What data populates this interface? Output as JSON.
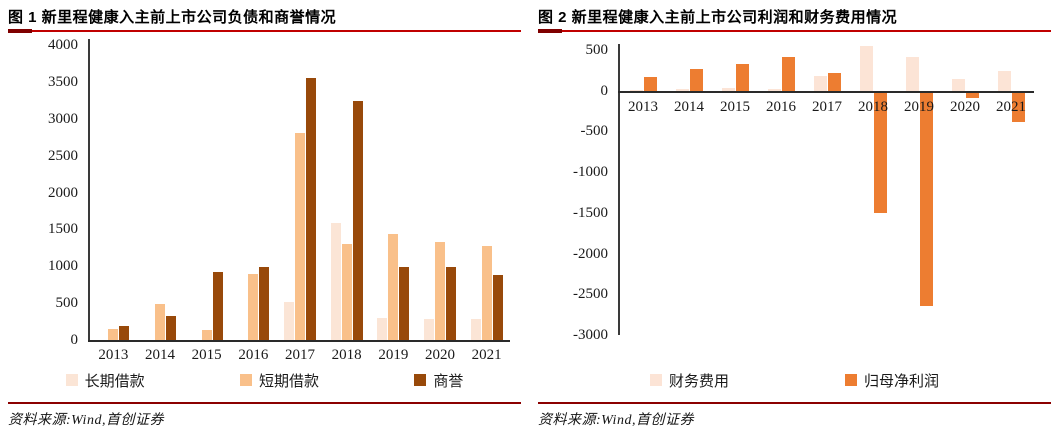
{
  "source_note": {
    "label": "资料来源:Wind,首创证券"
  },
  "accent_colors": {
    "title_rule": "#c00000",
    "title_rule_start": "#7f0000",
    "source_rule": "#8b0000",
    "axis_line": "#3a3a3a"
  },
  "chart_data": [
    {
      "type": "bar",
      "title": "图 1 新里程健康入主前上市公司负债和商誉情况",
      "categories": [
        "2013",
        "2014",
        "2015",
        "2016",
        "2017",
        "2018",
        "2019",
        "2020",
        "2021"
      ],
      "series": [
        {
          "name": "长期借款",
          "color": "#FBE5D6",
          "values": [
            0,
            0,
            0,
            0,
            520,
            1590,
            295,
            285,
            285
          ]
        },
        {
          "name": "短期借款",
          "color": "#F9C08A",
          "values": [
            150,
            490,
            130,
            890,
            2810,
            1295,
            1435,
            1330,
            1280
          ]
        },
        {
          "name": "商誉",
          "color": "#98490A",
          "values": [
            195,
            330,
            920,
            995,
            3555,
            3240,
            995,
            990,
            885
          ]
        }
      ],
      "xlabel": "",
      "ylabel": "",
      "ylim": [
        0,
        4000
      ],
      "ytick_step": 500,
      "grid": false,
      "legend_position": "bottom"
    },
    {
      "type": "bar",
      "title": "图 2 新里程健康入主前上市公司利润和财务费用情况",
      "categories": [
        "2013",
        "2014",
        "2015",
        "2016",
        "2017",
        "2018",
        "2019",
        "2020",
        "2021"
      ],
      "series": [
        {
          "name": "财务费用",
          "color": "#FCE4D6",
          "values": [
            5,
            25,
            35,
            15,
            175,
            550,
            410,
            150,
            245
          ]
        },
        {
          "name": "归母净利润",
          "color": "#ED7D31",
          "values": [
            165,
            270,
            330,
            420,
            215,
            -1480,
            -2615,
            -60,
            -360
          ]
        }
      ],
      "xlabel": "",
      "ylabel": "",
      "ylim": [
        -3000,
        500
      ],
      "ytick_step": 500,
      "grid": false,
      "legend_position": "bottom"
    }
  ]
}
